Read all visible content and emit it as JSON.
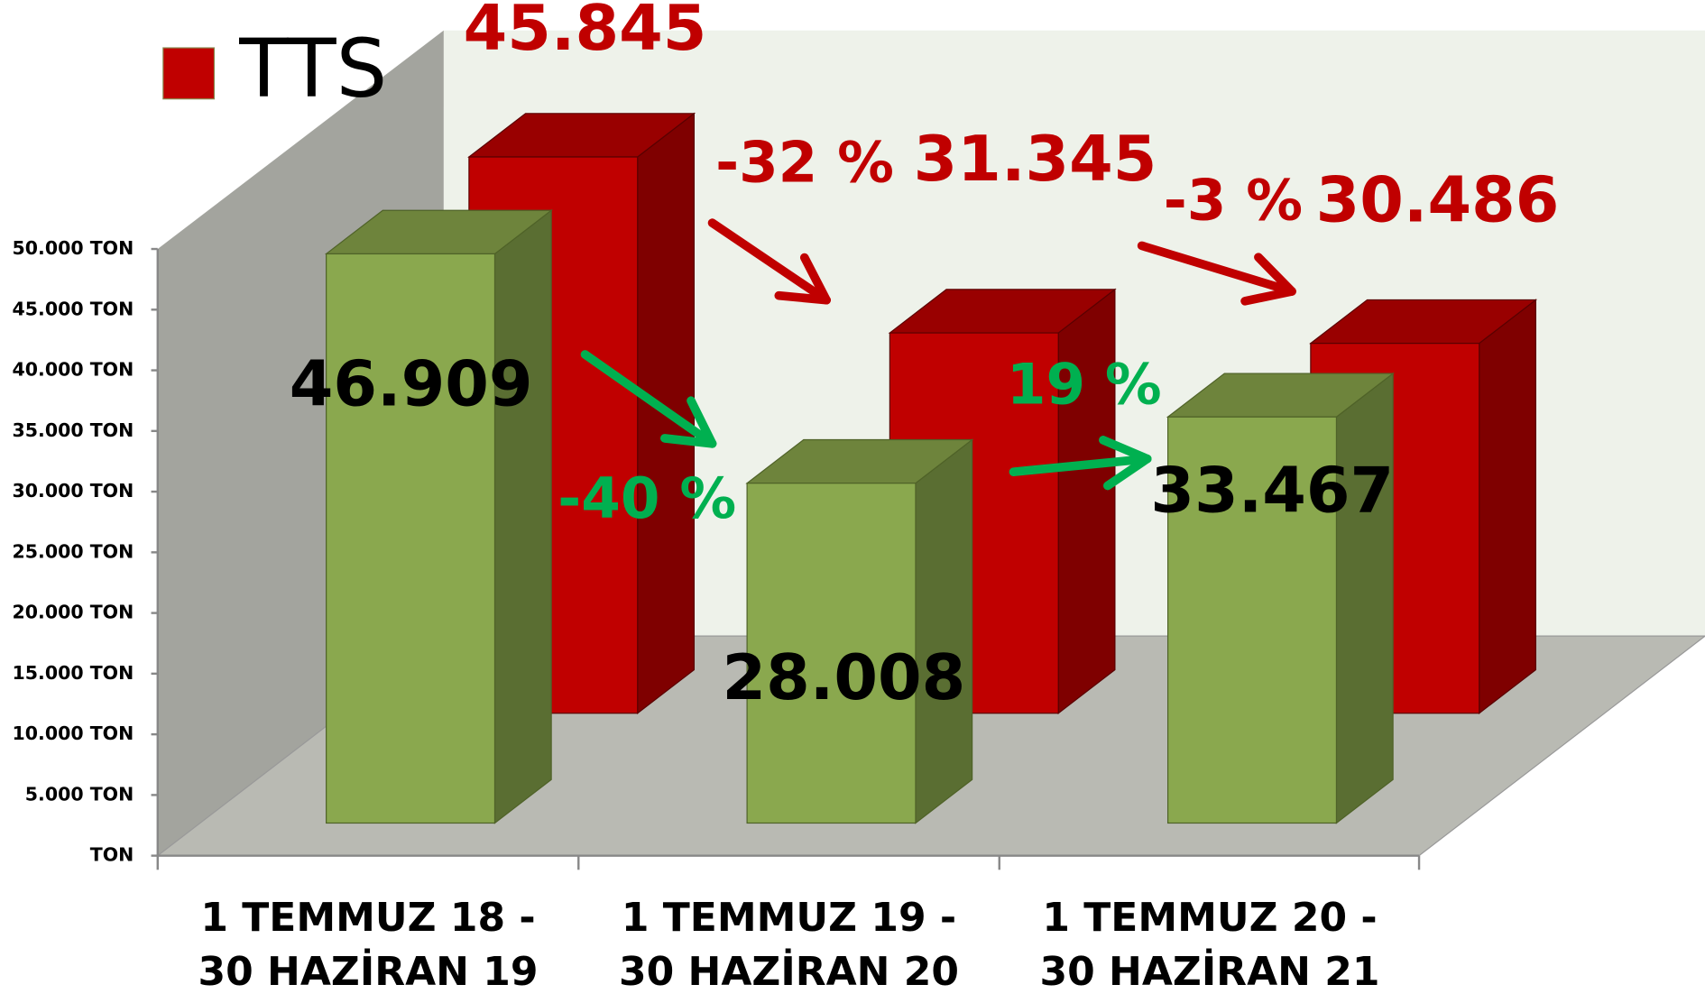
{
  "chart_data": {
    "type": "bar3d",
    "categories": [
      "1 TEMMUZ 18 -\n30 HAZİRAN 19",
      "1 TEMMUZ 19 -\n30 HAZİRAN 20",
      "1 TEMMUZ 20 -\n30 HAZİRAN 21"
    ],
    "series": [
      {
        "color": "#8aa84e",
        "values": [
          46909,
          28008,
          33467
        ],
        "value_labels": [
          "46.909",
          "28.008",
          "33.467"
        ]
      },
      {
        "name": "TTS",
        "color": "#c00000",
        "values": [
          45845,
          31345,
          30486
        ],
        "value_labels": [
          "45.845",
          "31.345",
          "30.486"
        ]
      }
    ],
    "annotations": [
      "-40 %",
      "19 %",
      "-32 %",
      "-3 %"
    ],
    "ylim": [
      0,
      50000
    ],
    "yticks": [
      {
        "value": 0,
        "label": "TON"
      },
      {
        "value": 5000,
        "label": "5.000 TON"
      },
      {
        "value": 10000,
        "label": "10.000 TON"
      },
      {
        "value": 15000,
        "label": "15.000 TON"
      },
      {
        "value": 20000,
        "label": "20.000 TON"
      },
      {
        "value": 25000,
        "label": "25.000 TON"
      },
      {
        "value": 30000,
        "label": "30.000 TON"
      },
      {
        "value": 35000,
        "label": "35.000 TON"
      },
      {
        "value": 40000,
        "label": "40.000 TON"
      },
      {
        "value": 45000,
        "label": "45.000 TON"
      },
      {
        "value": 50000,
        "label": "50.000 TON"
      }
    ],
    "legend": "top-left"
  }
}
